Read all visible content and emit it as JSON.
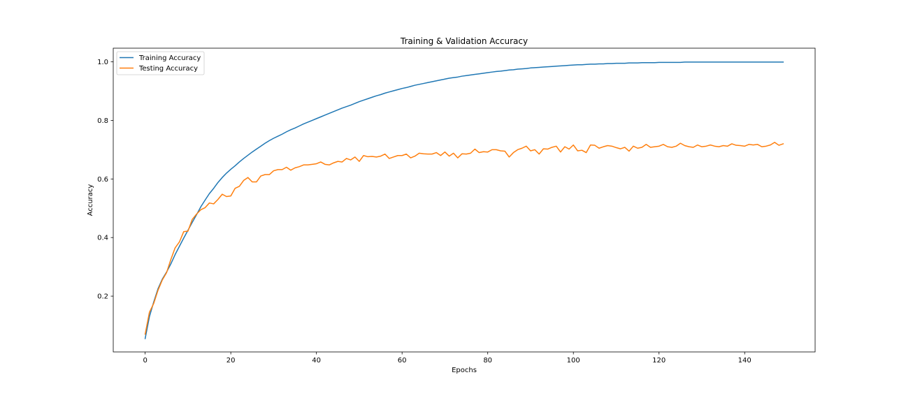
{
  "chart_data": {
    "type": "line",
    "title": "Training & Validation Accuracy",
    "xlabel": "Epochs",
    "ylabel": "Accuracy",
    "xlim": [
      -7.45,
      156.45
    ],
    "ylim": [
      0.0095,
      1.0465
    ],
    "xticks": [
      0,
      20,
      40,
      60,
      80,
      100,
      120,
      140
    ],
    "yticks": [
      0.2,
      0.4,
      0.6,
      0.8,
      1.0
    ],
    "xtick_labels": [
      "0",
      "20",
      "40",
      "60",
      "80",
      "100",
      "120",
      "140"
    ],
    "ytick_labels": [
      "0.2",
      "0.4",
      "0.6",
      "0.8",
      "1.0"
    ],
    "grid": false,
    "legend_position": "upper-left",
    "x": [
      0,
      1,
      2,
      3,
      4,
      5,
      6,
      7,
      8,
      9,
      10,
      11,
      12,
      13,
      14,
      15,
      16,
      17,
      18,
      19,
      20,
      21,
      22,
      23,
      24,
      25,
      26,
      27,
      28,
      29,
      30,
      31,
      32,
      33,
      34,
      35,
      36,
      37,
      38,
      39,
      40,
      41,
      42,
      43,
      44,
      45,
      46,
      47,
      48,
      49,
      50,
      51,
      52,
      53,
      54,
      55,
      56,
      57,
      58,
      59,
      60,
      61,
      62,
      63,
      64,
      65,
      66,
      67,
      68,
      69,
      70,
      71,
      72,
      73,
      74,
      75,
      76,
      77,
      78,
      79,
      80,
      81,
      82,
      83,
      84,
      85,
      86,
      87,
      88,
      89,
      90,
      91,
      92,
      93,
      94,
      95,
      96,
      97,
      98,
      99,
      100,
      101,
      102,
      103,
      104,
      105,
      106,
      107,
      108,
      109,
      110,
      111,
      112,
      113,
      114,
      115,
      116,
      117,
      118,
      119,
      120,
      121,
      122,
      123,
      124,
      125,
      126,
      127,
      128,
      129,
      130,
      131,
      132,
      133,
      134,
      135,
      136,
      137,
      138,
      139,
      140,
      141,
      142,
      143,
      144,
      145,
      146,
      147,
      148,
      149
    ],
    "series": [
      {
        "name": "Training Accuracy",
        "color": "#1f77b4",
        "values": [
          0.055,
          0.13,
          0.18,
          0.225,
          0.258,
          0.282,
          0.31,
          0.342,
          0.37,
          0.398,
          0.425,
          0.452,
          0.478,
          0.505,
          0.528,
          0.55,
          0.568,
          0.588,
          0.605,
          0.62,
          0.633,
          0.645,
          0.658,
          0.67,
          0.681,
          0.692,
          0.702,
          0.712,
          0.722,
          0.731,
          0.739,
          0.746,
          0.753,
          0.761,
          0.768,
          0.774,
          0.781,
          0.788,
          0.794,
          0.8,
          0.806,
          0.812,
          0.818,
          0.824,
          0.83,
          0.836,
          0.842,
          0.847,
          0.852,
          0.858,
          0.864,
          0.869,
          0.874,
          0.879,
          0.884,
          0.888,
          0.893,
          0.897,
          0.901,
          0.905,
          0.909,
          0.912,
          0.916,
          0.92,
          0.923,
          0.926,
          0.929,
          0.932,
          0.935,
          0.938,
          0.941,
          0.944,
          0.946,
          0.948,
          0.951,
          0.953,
          0.955,
          0.957,
          0.959,
          0.961,
          0.963,
          0.965,
          0.967,
          0.968,
          0.97,
          0.972,
          0.973,
          0.975,
          0.976,
          0.977,
          0.979,
          0.98,
          0.981,
          0.982,
          0.983,
          0.984,
          0.985,
          0.986,
          0.987,
          0.988,
          0.989,
          0.99,
          0.99,
          0.991,
          0.992,
          0.992,
          0.993,
          0.993,
          0.994,
          0.994,
          0.995,
          0.995,
          0.995,
          0.996,
          0.996,
          0.996,
          0.997,
          0.997,
          0.997,
          0.997,
          0.998,
          0.998,
          0.998,
          0.998,
          0.998,
          0.998,
          0.999,
          0.999,
          0.999,
          0.999,
          0.999,
          0.999,
          0.999,
          0.999,
          0.999,
          0.999,
          0.999,
          0.999,
          0.999,
          0.999,
          0.999,
          0.999,
          0.999,
          0.999,
          0.999,
          0.999,
          0.999,
          0.999,
          0.999,
          0.999
        ]
      },
      {
        "name": "Testing Accuracy",
        "color": "#ff7f0e",
        "values": [
          0.07,
          0.145,
          0.175,
          0.22,
          0.255,
          0.28,
          0.325,
          0.365,
          0.385,
          0.42,
          0.422,
          0.462,
          0.48,
          0.495,
          0.502,
          0.518,
          0.515,
          0.53,
          0.548,
          0.54,
          0.542,
          0.568,
          0.575,
          0.595,
          0.605,
          0.59,
          0.59,
          0.61,
          0.615,
          0.615,
          0.628,
          0.632,
          0.632,
          0.64,
          0.63,
          0.638,
          0.642,
          0.648,
          0.648,
          0.65,
          0.652,
          0.658,
          0.65,
          0.648,
          0.655,
          0.66,
          0.658,
          0.67,
          0.665,
          0.675,
          0.66,
          0.68,
          0.676,
          0.677,
          0.675,
          0.678,
          0.685,
          0.67,
          0.675,
          0.68,
          0.68,
          0.685,
          0.672,
          0.678,
          0.688,
          0.686,
          0.685,
          0.685,
          0.69,
          0.68,
          0.692,
          0.678,
          0.688,
          0.672,
          0.686,
          0.685,
          0.688,
          0.702,
          0.69,
          0.693,
          0.692,
          0.7,
          0.7,
          0.696,
          0.695,
          0.675,
          0.69,
          0.7,
          0.705,
          0.712,
          0.696,
          0.7,
          0.685,
          0.703,
          0.702,
          0.708,
          0.712,
          0.692,
          0.71,
          0.702,
          0.716,
          0.696,
          0.698,
          0.69,
          0.716,
          0.715,
          0.705,
          0.71,
          0.714,
          0.712,
          0.707,
          0.703,
          0.708,
          0.695,
          0.712,
          0.705,
          0.708,
          0.718,
          0.708,
          0.71,
          0.712,
          0.718,
          0.71,
          0.708,
          0.712,
          0.722,
          0.714,
          0.71,
          0.708,
          0.716,
          0.71,
          0.712,
          0.716,
          0.712,
          0.71,
          0.714,
          0.712,
          0.72,
          0.715,
          0.714,
          0.712,
          0.718,
          0.716,
          0.718,
          0.71,
          0.712,
          0.716,
          0.725,
          0.715,
          0.72
        ]
      }
    ]
  }
}
